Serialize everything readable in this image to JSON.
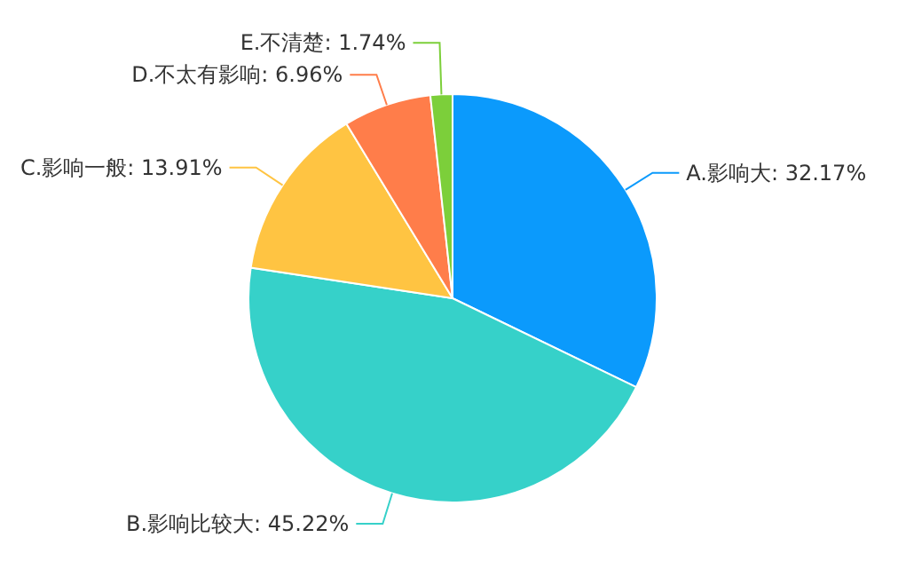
{
  "chart_data": {
    "type": "pie",
    "categories": [
      "A.影响大",
      "B.影响比较大",
      "C.影响一般",
      "D.不太有影响",
      "E.不清楚"
    ],
    "values": [
      32.17,
      45.22,
      13.91,
      6.96,
      1.74
    ],
    "value_labels": [
      "32.17%",
      "45.22%",
      "13.91%",
      "6.96%",
      "1.74%"
    ],
    "colors": [
      "#0b9afc",
      "#36d1c9",
      "#ffc442",
      "#ff7d4a",
      "#7ccf3a"
    ],
    "legend": false
  }
}
